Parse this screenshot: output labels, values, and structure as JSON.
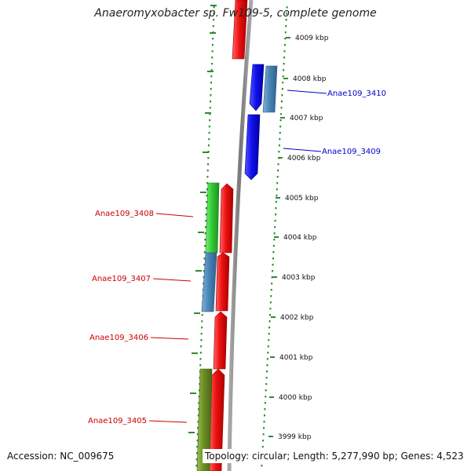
{
  "title": "Anaeromyxobacter sp. Fw109-5, complete genome",
  "tick_labels": [
    "4009 kbp",
    "4008 kbp",
    "4007 kbp",
    "4006 kbp",
    "4005 kbp",
    "4004 kbp",
    "4003 kbp",
    "4002 kbp",
    "4001 kbp",
    "4000 kbp",
    "3999 kbp"
  ],
  "locus_labels": [
    {
      "text": "Anae109_3410",
      "color": "#0000cc"
    },
    {
      "text": "Anae109_3409",
      "color": "#0000cc"
    },
    {
      "text": "Anae109_3408",
      "color": "#cc0000"
    },
    {
      "text": "Anae109_3407",
      "color": "#cc0000"
    },
    {
      "text": "Anae109_3406",
      "color": "#cc0000"
    },
    {
      "text": "Anae109_3405",
      "color": "#cc0000"
    }
  ],
  "footer": {
    "accession": "Accession: NC_009675",
    "topology": "Topology: circular; Length: 5,277,990 bp; Genes: 4,523"
  },
  "colors": {
    "backbone": "#888888",
    "tick": "#2e8b2e",
    "red": "#ee1111",
    "blue": "#1111ee",
    "steelblue": "#4a86b8",
    "green": "#33cc33",
    "olive": "#6b8e23"
  }
}
